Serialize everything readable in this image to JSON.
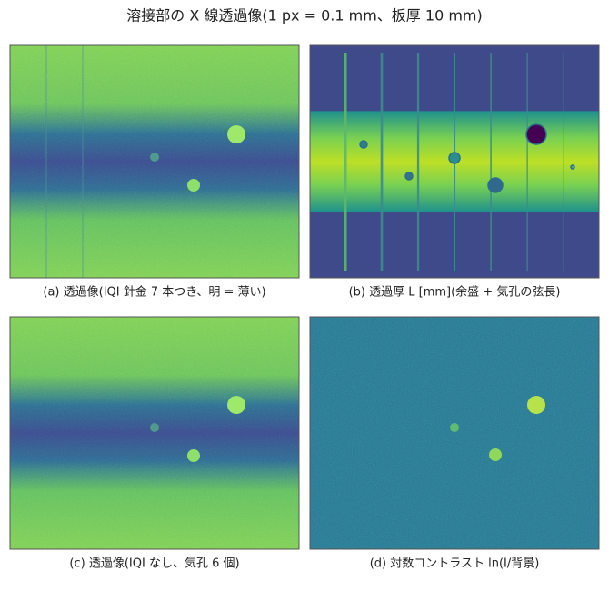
{
  "title": "溶接部の X 線透過像(1 px = 0.1 mm、板厚 10 mm)",
  "panels": [
    {
      "caption": "(a) 透過像(IQI 針金 7 本つき、明 = 薄い)"
    },
    {
      "caption": "(b) 透過厚 L [mm](余盛 + 気孔の弦長)"
    },
    {
      "caption": "(c) 透過像(IQI なし、気孔 6 個)"
    },
    {
      "caption": "(d) 対数コントラスト ln(I/背景)"
    }
  ]
}
